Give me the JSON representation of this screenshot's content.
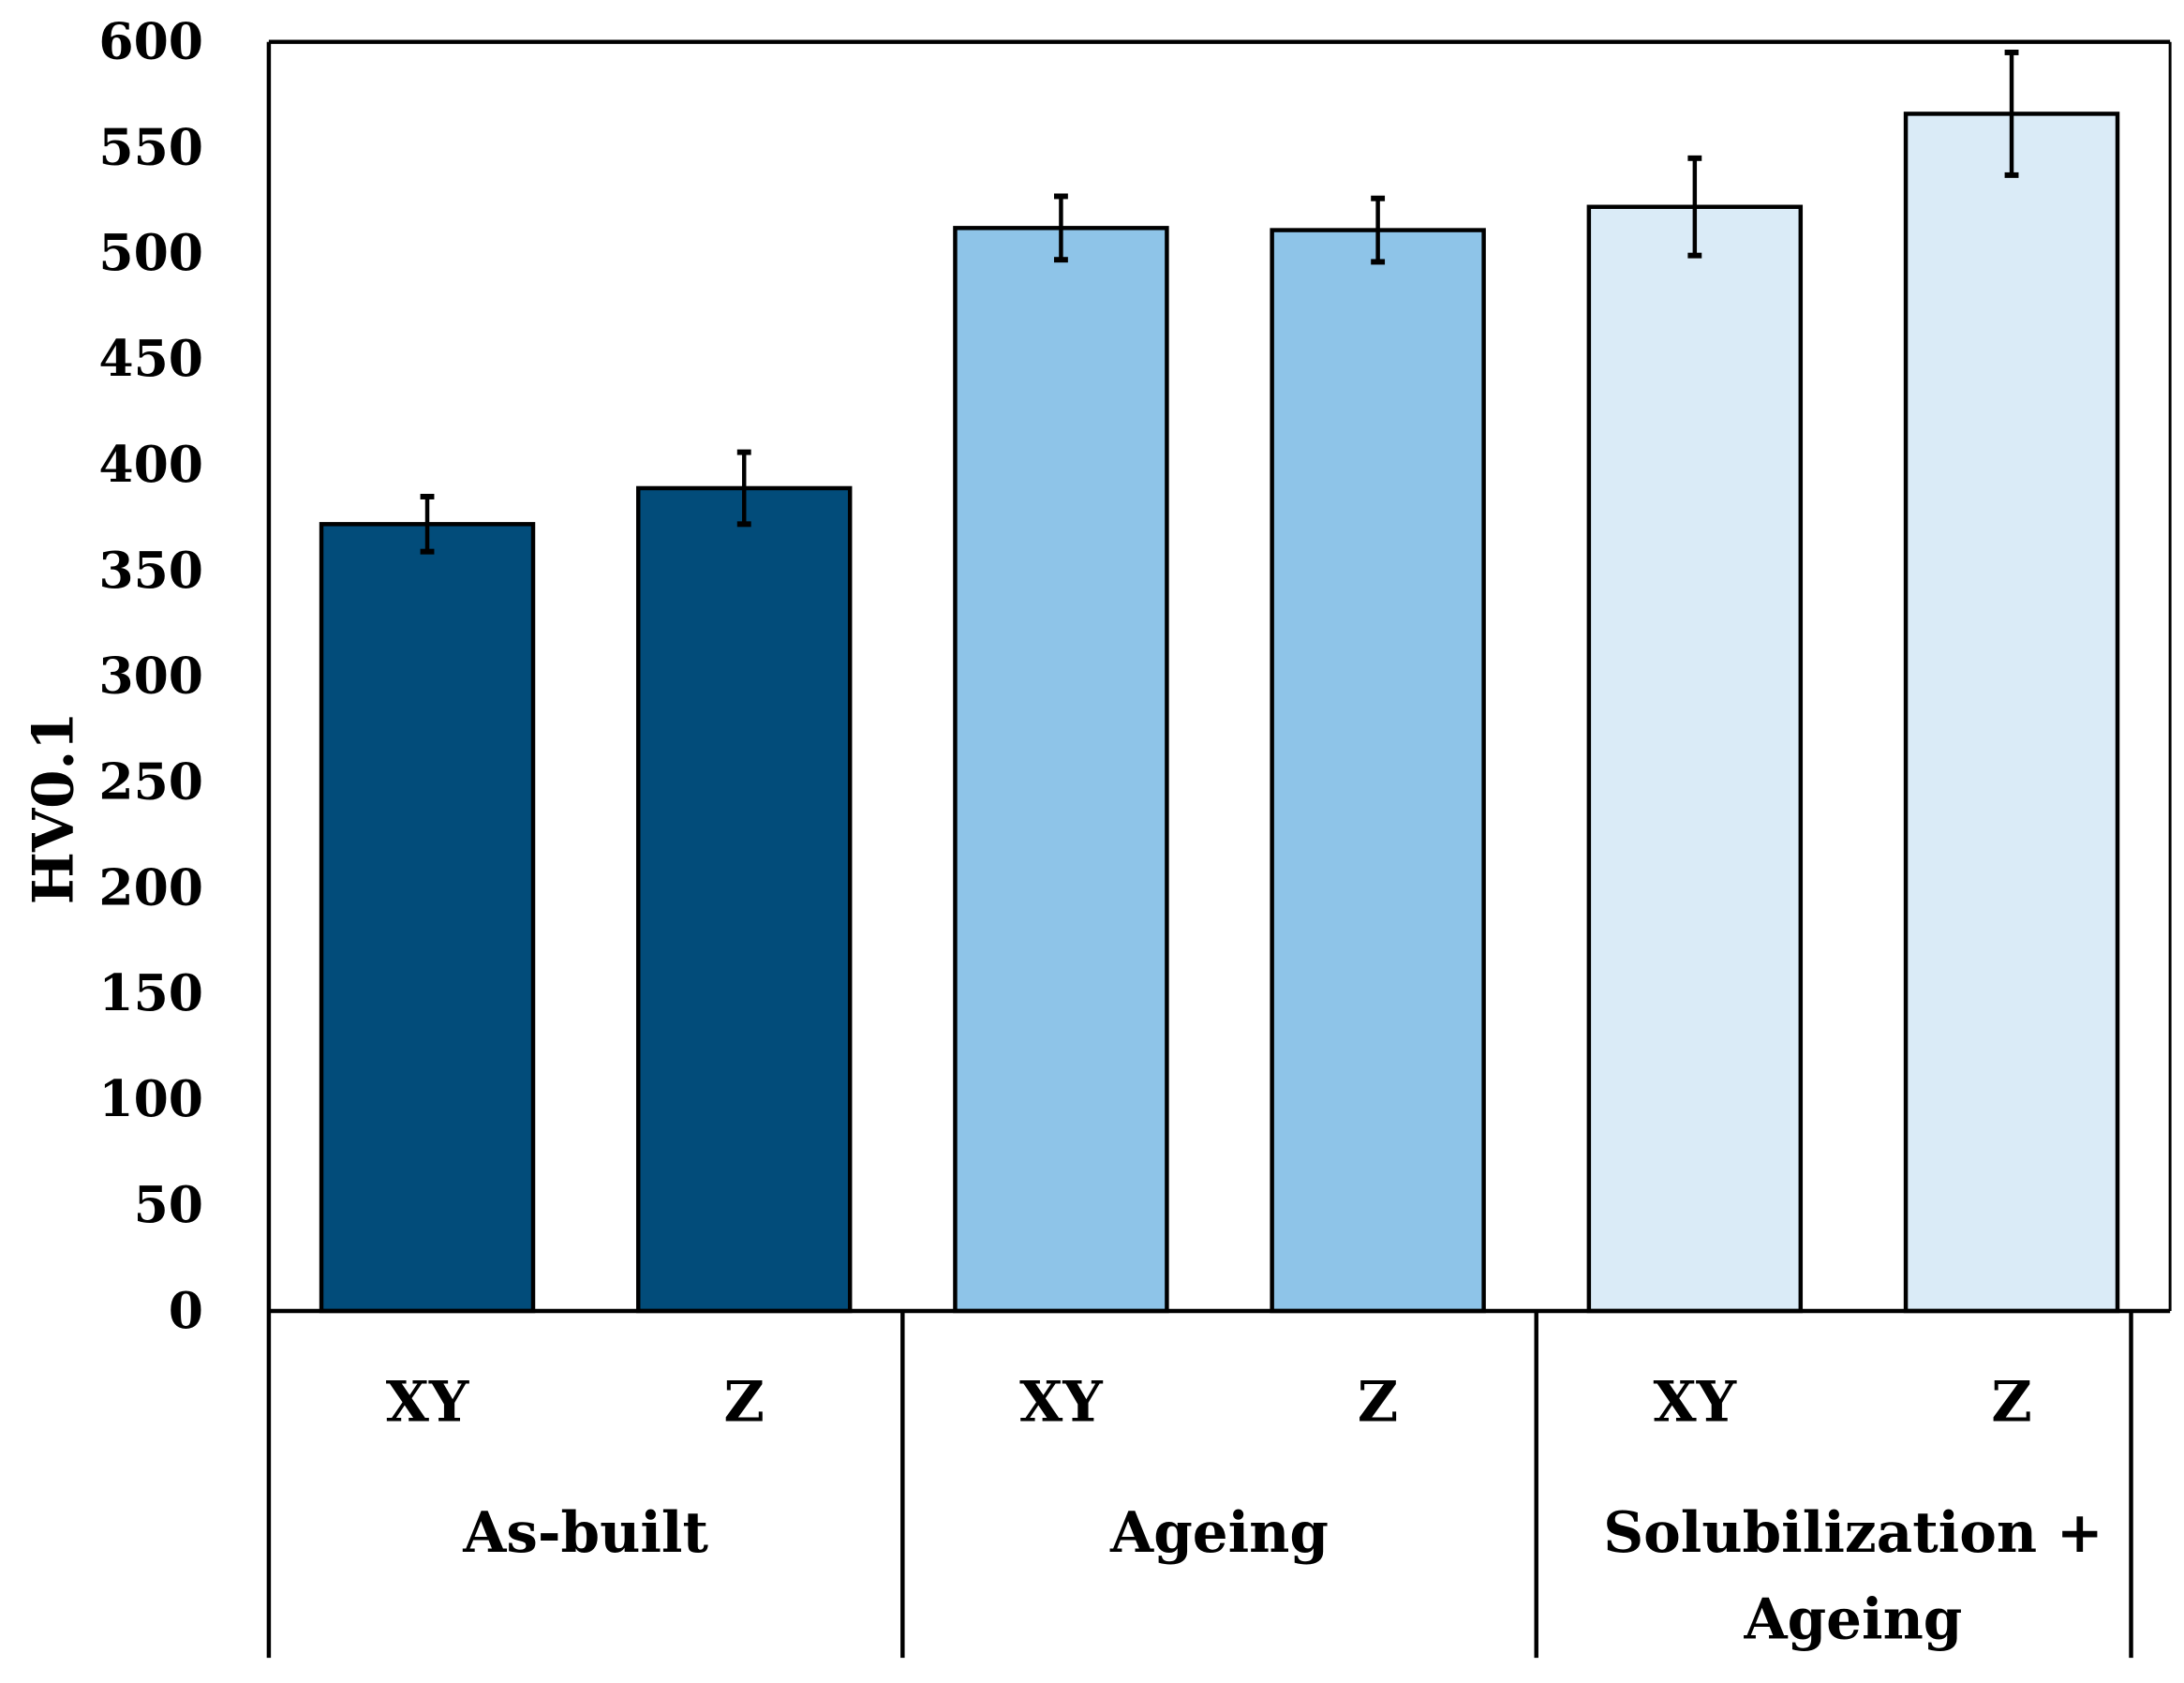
{
  "chart_data": {
    "type": "bar",
    "title": "",
    "xlabel": "",
    "ylabel": "HV0.1",
    "ylim": [
      0,
      600
    ],
    "yticks": [
      0,
      50,
      100,
      150,
      200,
      250,
      300,
      350,
      400,
      450,
      500,
      550,
      600
    ],
    "grid": false,
    "legend": "none",
    "categories": [
      "XY",
      "Z",
      "XY",
      "Z",
      "XY",
      "Z"
    ],
    "groups": [
      {
        "label": "As-built",
        "label_lines": [
          "As-built"
        ],
        "color": "#024C7A",
        "values": [
          372,
          389
        ],
        "errors": [
          13,
          17
        ]
      },
      {
        "label": "Ageing",
        "label_lines": [
          "Ageing"
        ],
        "color": "#8EC4E8",
        "values": [
          512,
          511
        ],
        "errors": [
          15,
          15
        ]
      },
      {
        "label": "Solubilization + Ageing",
        "label_lines": [
          "Solubilization +",
          "Ageing"
        ],
        "color": "#DAEBF7",
        "values": [
          522,
          566
        ],
        "errors": [
          23,
          29
        ]
      }
    ]
  }
}
